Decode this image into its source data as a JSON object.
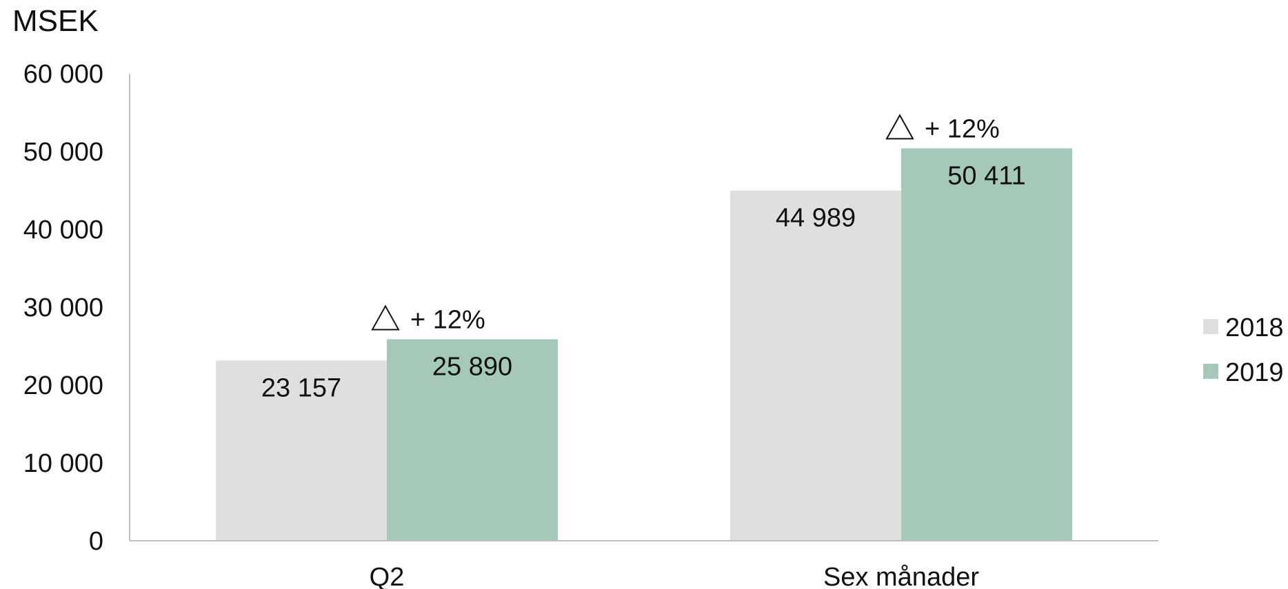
{
  "chart_data": {
    "type": "bar",
    "unit_label": "MSEK",
    "categories": [
      "Q2",
      "Sex månader"
    ],
    "series": [
      {
        "name": "2018",
        "values": [
          23157,
          44989
        ],
        "labels": [
          "23 157",
          "44 989"
        ],
        "color": "#e0dfdd"
      },
      {
        "name": "2019",
        "values": [
          25890,
          50411
        ],
        "labels": [
          "25 890",
          "50 411"
        ],
        "color": "#a6c8b8"
      }
    ],
    "annotations": [
      "+ 12%",
      "+ 12%"
    ],
    "annotation_symbol": "△",
    "ylim": [
      0,
      60000
    ],
    "yticks": [
      0,
      10000,
      20000,
      30000,
      40000,
      50000,
      60000
    ],
    "ytick_labels": [
      "0",
      "10 000",
      "20 000",
      "30 000",
      "40 000",
      "50 000",
      "60 000"
    ],
    "grid": false,
    "legend_position": "right"
  }
}
